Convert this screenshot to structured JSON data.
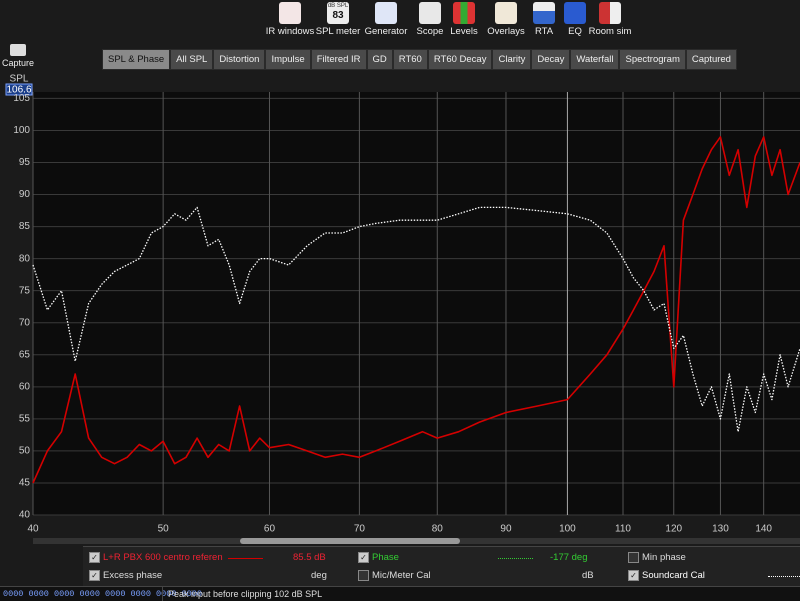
{
  "toolbar": [
    "IR windows",
    "SPL meter",
    "Generator",
    "Scope",
    "Levels",
    "Overlays",
    "RTA",
    "EQ",
    "Room sim"
  ],
  "spl_icon": {
    "unit": "dB SPL",
    "reading": "83"
  },
  "capture": "Capture",
  "tabs": [
    "SPL & Phase",
    "All SPL",
    "Distortion",
    "Impulse",
    "Filtered IR",
    "GD",
    "RT60",
    "RT60 Decay",
    "Clarity",
    "Decay",
    "Waterfall",
    "Spectrogram",
    "Captured"
  ],
  "chart_data": {
    "type": "line",
    "y_label": "SPL",
    "cursor_value": 106.6,
    "x_log": true,
    "grid": true,
    "xlim": [
      40,
      149
    ],
    "xticks": [
      40,
      50,
      60,
      70,
      80,
      90,
      100,
      110,
      120,
      130,
      140
    ],
    "ylim": [
      40,
      106
    ],
    "yticks": [
      40,
      45,
      50,
      55,
      60,
      65,
      70,
      75,
      80,
      85,
      90,
      95,
      100,
      105
    ],
    "x": [
      40,
      41,
      42,
      43,
      44,
      45,
      46,
      47,
      48,
      49,
      50,
      51,
      52,
      53,
      54,
      55,
      56,
      57,
      58,
      59,
      60,
      62,
      64,
      66,
      68,
      70,
      72,
      75,
      78,
      80,
      83,
      86,
      90,
      95,
      100,
      104,
      107,
      110,
      112,
      114,
      116,
      118,
      120,
      122,
      124,
      126,
      128,
      130,
      132,
      134,
      136,
      138,
      140,
      142,
      144,
      146,
      149
    ],
    "series": [
      {
        "name": "L+R PBX  600 centro reference J",
        "color": "#d40000",
        "dash": false,
        "values": [
          45,
          50,
          53,
          62,
          52,
          49,
          48,
          49,
          51,
          50,
          51.5,
          48,
          49,
          52,
          49,
          51,
          50,
          57,
          50,
          52,
          50.5,
          51,
          50,
          49,
          49.5,
          49,
          50,
          51.5,
          53,
          52,
          53,
          54.5,
          56,
          57,
          58,
          62,
          65,
          69,
          72,
          75,
          78,
          82,
          60,
          86,
          90,
          94,
          97,
          99,
          93,
          97,
          88,
          96,
          99,
          93,
          97,
          90,
          95
        ]
      },
      {
        "name": "Soundcard Cal",
        "color": "#ffffff",
        "dash": true,
        "values": [
          79,
          72,
          75,
          64,
          73,
          76,
          78,
          79,
          80,
          84,
          85,
          87,
          86,
          88,
          82,
          83,
          79,
          73,
          78,
          80,
          80,
          79,
          82,
          84,
          84,
          85,
          85.5,
          86,
          86,
          86,
          87,
          88,
          88,
          87.5,
          87,
          86,
          84,
          80,
          77,
          75,
          72,
          73,
          66,
          68,
          62,
          57,
          60,
          55,
          62,
          53,
          60,
          56,
          62,
          58,
          65,
          60,
          66
        ]
      }
    ]
  },
  "legend_panel": {
    "series_readout": "85.5 dB",
    "phase": "Phase",
    "phase_readout": "-177 deg",
    "min_phase": "Min phase",
    "excess_phase": "Excess phase",
    "excess_unit": "deg",
    "mic_cal": "Mic/Meter Cal",
    "mic_unit": "dB"
  },
  "status": {
    "counters": "0000 0000 0000 0000 0000 0000 0000 0000",
    "message": "Peak input before clipping 102 dB SPL"
  }
}
